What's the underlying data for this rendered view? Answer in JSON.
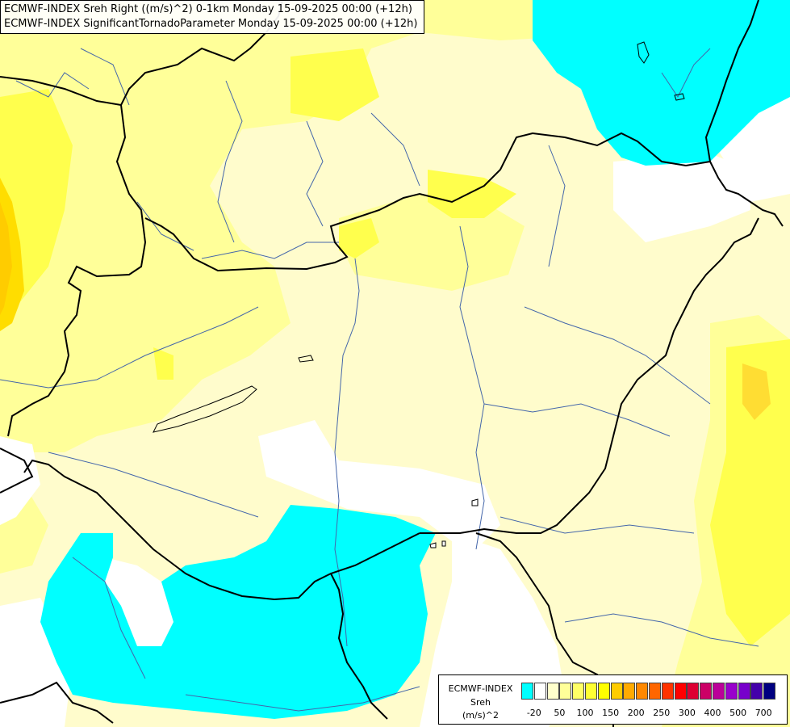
{
  "header": {
    "line1": "ECMWF-INDEX Sreh Right ((m/s)^2) 0-1km Monday 15-09-2025 00:00 (+12h)",
    "line2": "ECMWF-INDEX SignificantTornadoParameter Monday 15-09-2025 00:00 (+12h)"
  },
  "legend": {
    "source": "ECMWF-INDEX",
    "variable": "Sreh",
    "unit": "(m/s)^2",
    "swatches": [
      "#00ffff",
      "#ffffff",
      "#ffffcc",
      "#ffff99",
      "#ffff66",
      "#ffff33",
      "#ffff00",
      "#ffcc00",
      "#ffaa00",
      "#ff8800",
      "#ff6600",
      "#ff3300",
      "#ff0000",
      "#dd0033",
      "#cc0066",
      "#bb0099",
      "#9900cc",
      "#7700cc",
      "#4400aa",
      "#000080"
    ],
    "ticks": [
      "-20",
      "50",
      "100",
      "150",
      "200",
      "250",
      "300",
      "400",
      "500",
      "700"
    ]
  },
  "colors": {
    "cyan": "#00ffff",
    "pale_yellow": "#fffccc",
    "light_yellow": "#ffff99",
    "yellow": "#ffff33",
    "orange": "#ffcc00",
    "border": "#000000",
    "river": "#4466aa"
  }
}
